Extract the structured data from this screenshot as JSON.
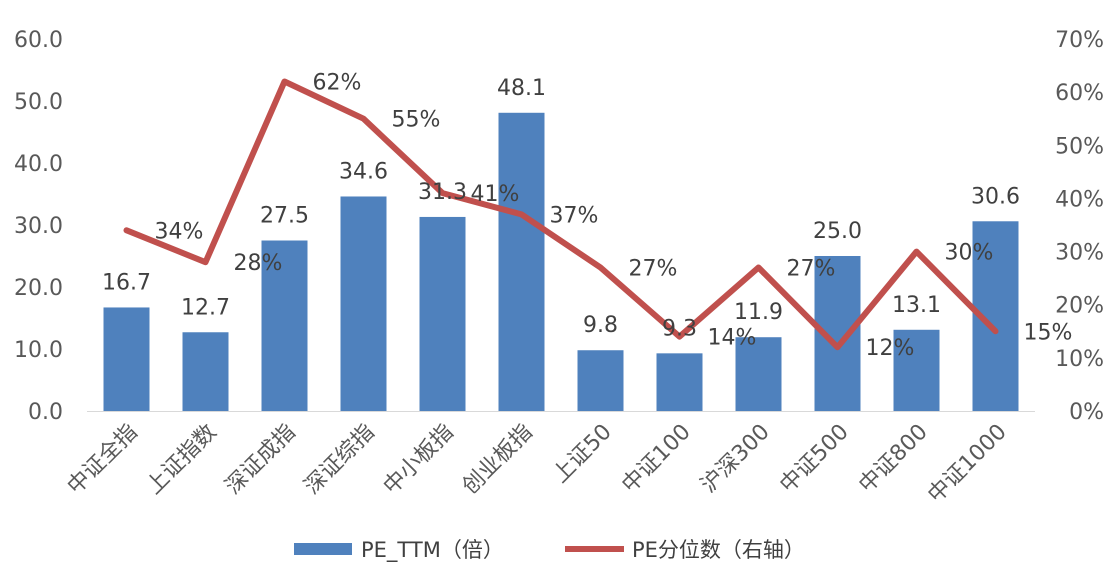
{
  "chart_data": {
    "type": "bar+line",
    "categories": [
      "中证全指",
      "上证指数",
      "深证成指",
      "深证综指",
      "中小板指",
      "创业板指",
      "上证50",
      "中证100",
      "沪深300",
      "中证500",
      "中证800",
      "中证1000"
    ],
    "series": [
      {
        "name": "PE_TTM（倍）",
        "type": "bar",
        "axis": "left",
        "color": "#4F81BD",
        "values": [
          16.7,
          12.7,
          27.5,
          34.6,
          31.3,
          48.1,
          9.8,
          9.3,
          11.9,
          25.0,
          13.1,
          30.6
        ],
        "labels": [
          "16.7",
          "12.7",
          "27.5",
          "34.6",
          "31.3",
          "48.1",
          "9.8",
          "9.3",
          "11.9",
          "25.0",
          "13.1",
          "30.6"
        ]
      },
      {
        "name": "PE分位数（右轴）",
        "type": "line",
        "axis": "right",
        "color": "#C0504D",
        "values": [
          0.34,
          0.28,
          0.62,
          0.55,
          0.41,
          0.37,
          0.27,
          0.14,
          0.27,
          0.12,
          0.3,
          0.15
        ],
        "labels": [
          "34%",
          "28%",
          "62%",
          "55%",
          "41%",
          "37%",
          "27%",
          "14%",
          "27%",
          "12%",
          "30%",
          "15%"
        ]
      }
    ],
    "y_left": {
      "min": 0,
      "max": 60,
      "ticks": [
        "0.0",
        "10.0",
        "20.0",
        "30.0",
        "40.0",
        "50.0",
        "60.0"
      ]
    },
    "y_right": {
      "min": 0,
      "max": 0.7,
      "ticks": [
        "0%",
        "10%",
        "20%",
        "30%",
        "40%",
        "50%",
        "60%",
        "70%"
      ]
    },
    "grid": false,
    "legend_position": "bottom"
  }
}
